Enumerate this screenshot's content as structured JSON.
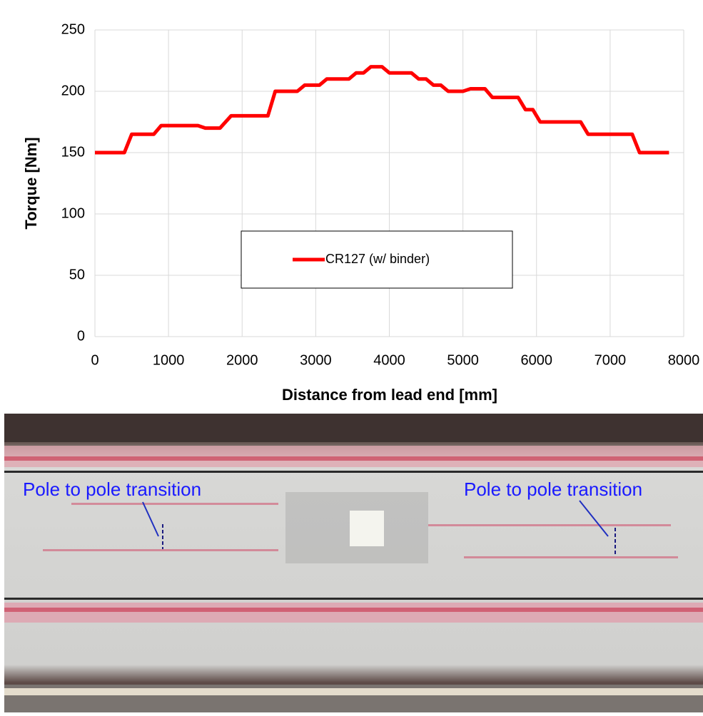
{
  "chart_data": {
    "type": "line",
    "xlabel": "Distance from lead end [mm]",
    "ylabel": "Torque [Nm]",
    "xlim": [
      0,
      8000
    ],
    "xticks": [
      0,
      1000,
      2000,
      3000,
      4000,
      5000,
      6000,
      7000,
      8000
    ],
    "ylim": [
      0,
      250
    ],
    "yticks": [
      0,
      50,
      100,
      150,
      200,
      250
    ],
    "grid": true,
    "legend": "center",
    "series": [
      {
        "name": "CR127 (w/ binder)",
        "color": "#ff0000",
        "x": [
          0,
          400,
          500,
          800,
          900,
          1400,
          1500,
          1700,
          1850,
          2350,
          2450,
          2750,
          2850,
          3050,
          3150,
          3450,
          3550,
          3650,
          3750,
          3900,
          4000,
          4300,
          4400,
          4500,
          4600,
          4700,
          4800,
          5000,
          5100,
          5300,
          5400,
          5750,
          5850,
          5950,
          6050,
          6600,
          6700,
          7300,
          7400,
          7800
        ],
        "values": [
          150,
          150,
          165,
          165,
          172,
          172,
          170,
          170,
          180,
          180,
          200,
          200,
          205,
          205,
          210,
          210,
          215,
          215,
          220,
          220,
          215,
          215,
          210,
          210,
          205,
          205,
          200,
          200,
          202,
          202,
          195,
          195,
          185,
          185,
          175,
          175,
          165,
          165,
          150,
          150
        ]
      }
    ]
  },
  "photo": {
    "annotations": [
      "Pole to pole transition",
      "Pole to pole transition"
    ]
  }
}
